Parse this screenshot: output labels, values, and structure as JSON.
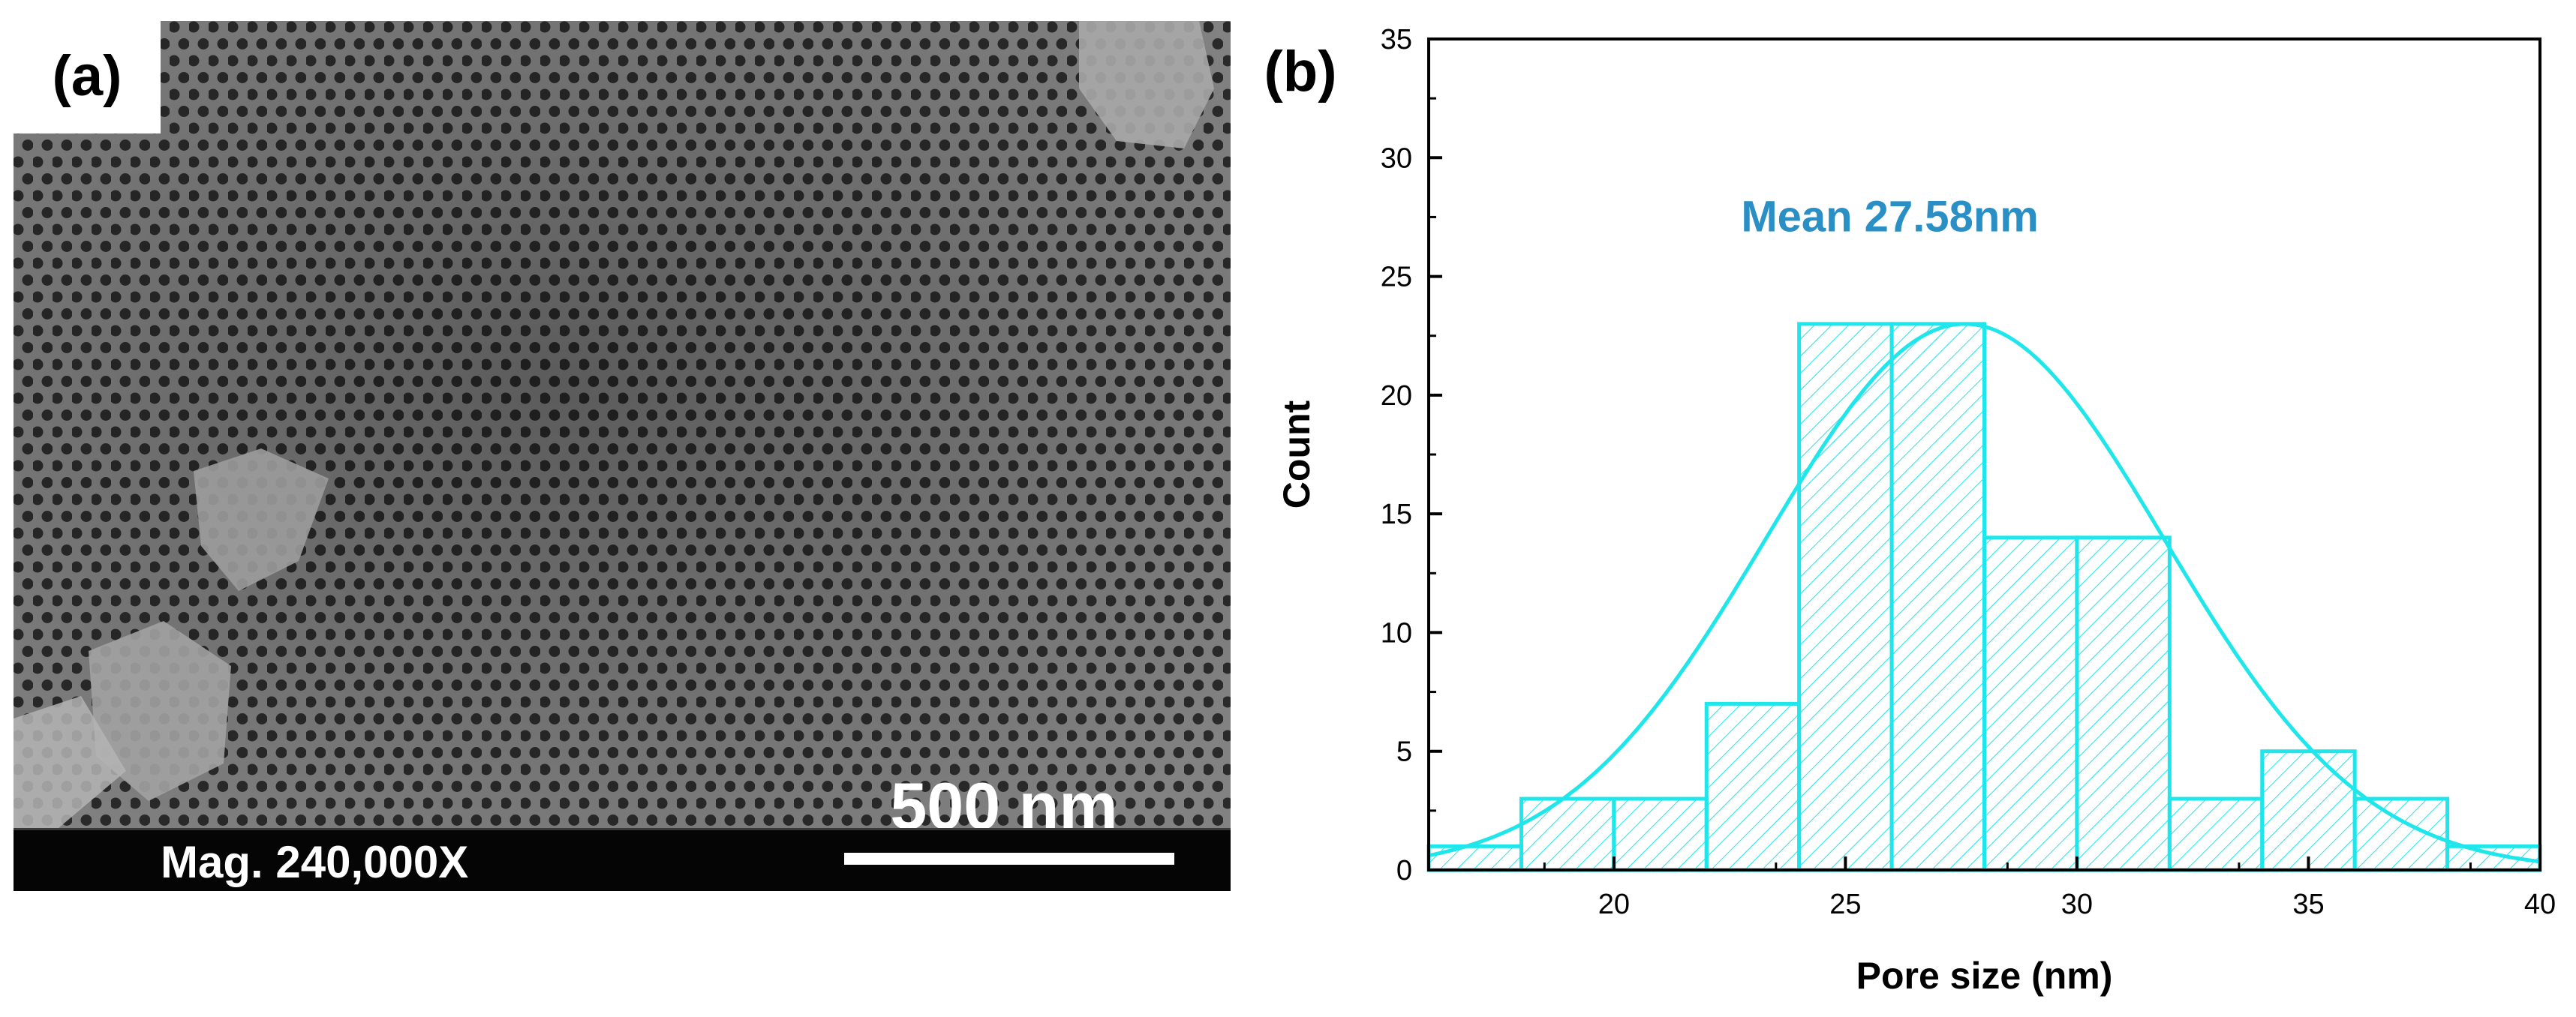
{
  "panel_a": {
    "label": "(a)",
    "scale_label": "500 nm",
    "magnification": "Mag. 240,000X"
  },
  "panel_b": {
    "label": "(b)"
  },
  "colors": {
    "series": "#1ee6ea",
    "annotation": "#2a8fc4",
    "axis": "#000000"
  },
  "chart_data": {
    "type": "bar",
    "title": "",
    "xlabel": "Pore size (nm)",
    "ylabel": "Count",
    "xlim": [
      16,
      40
    ],
    "ylim": [
      0,
      35
    ],
    "x_ticks": [
      20,
      25,
      30,
      35,
      40
    ],
    "y_ticks": [
      0,
      5,
      10,
      15,
      20,
      25,
      30,
      35
    ],
    "bins": [
      {
        "from": 16,
        "to": 18,
        "count": 1
      },
      {
        "from": 18,
        "to": 20,
        "count": 3
      },
      {
        "from": 20,
        "to": 22,
        "count": 3
      },
      {
        "from": 22,
        "to": 24,
        "count": 7
      },
      {
        "from": 24,
        "to": 26,
        "count": 23
      },
      {
        "from": 26,
        "to": 28,
        "count": 23
      },
      {
        "from": 28,
        "to": 30,
        "count": 14
      },
      {
        "from": 30,
        "to": 32,
        "count": 14
      },
      {
        "from": 32,
        "to": 34,
        "count": 3
      },
      {
        "from": 34,
        "to": 36,
        "count": 5
      },
      {
        "from": 36,
        "to": 38,
        "count": 3
      },
      {
        "from": 38,
        "to": 40,
        "count": 1
      }
    ],
    "fit": {
      "type": "normal",
      "mean": 27.58,
      "sigma": 4.3,
      "peak": 23
    },
    "annotation": "Mean 27.58nm"
  }
}
